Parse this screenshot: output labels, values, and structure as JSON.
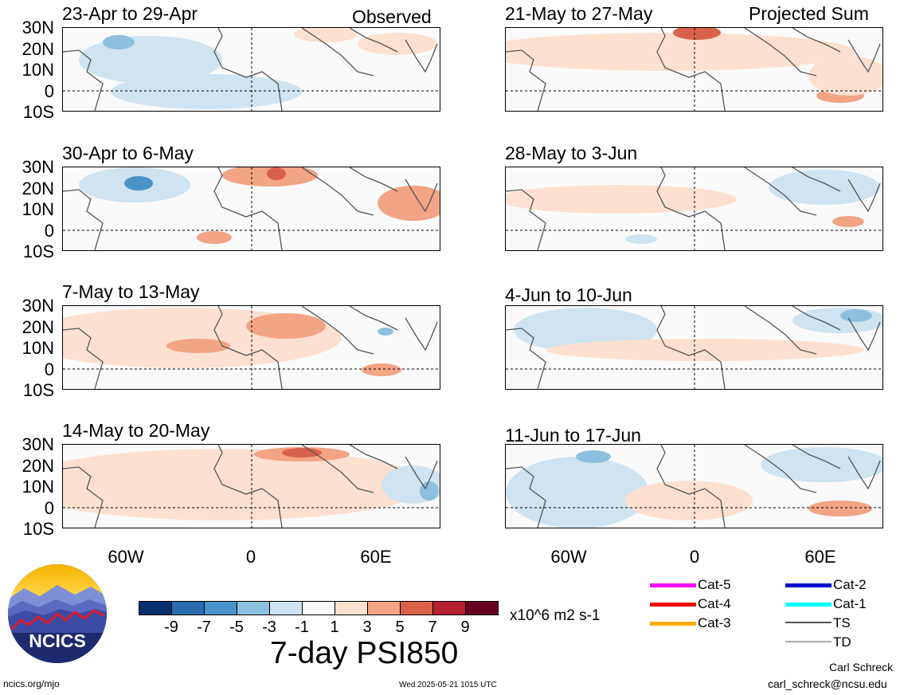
{
  "headers": {
    "left": "Observed",
    "right": "Projected Sum"
  },
  "panels_left": [
    {
      "title": "23-Apr to 29-Apr"
    },
    {
      "title": "30-Apr to 6-May"
    },
    {
      "title": "7-May to 13-May"
    },
    {
      "title": "14-May to 20-May"
    }
  ],
  "panels_right": [
    {
      "title": "21-May to 27-May"
    },
    {
      "title": "28-May to 3-Jun"
    },
    {
      "title": "4-Jun to 10-Jun"
    },
    {
      "title": "11-Jun to 17-Jun"
    }
  ],
  "lat_labels": [
    "30N",
    "20N",
    "10N",
    "0",
    "10S"
  ],
  "lon_labels": [
    "60W",
    "0",
    "60E"
  ],
  "colorbar": {
    "colors": [
      "#08306b",
      "#2b6cb0",
      "#4a93c9",
      "#8dc0de",
      "#cfe3f0",
      "#fafafa",
      "#fde0cf",
      "#f2a485",
      "#d9614a",
      "#b51f2e",
      "#67001f"
    ],
    "labels": [
      "-9",
      "-7",
      "-5",
      "-3",
      "-1",
      "1",
      "3",
      "5",
      "7",
      "9"
    ],
    "units": "x10^6 m2 s-1",
    "title": "7-day PSI850"
  },
  "storm_legend": [
    {
      "label": "Cat-5",
      "color": "#ff00ff"
    },
    {
      "label": "Cat-4",
      "color": "#ee0000"
    },
    {
      "label": "Cat-3",
      "color": "#ffaa00"
    },
    {
      "label": "Cat-2",
      "color": "#0000cc"
    },
    {
      "label": "Cat-1",
      "color": "#00ffff"
    },
    {
      "label": "TS",
      "color": "#555555"
    },
    {
      "label": "TD",
      "color": "#aaaaaa"
    }
  ],
  "logo_text": "NCICS",
  "footer": {
    "url": "ncics.org/mjo",
    "timestamp": "Wed 2025-05-21 1015 UTC",
    "author": "Carl Schreck",
    "email": "carl_schreck@ncsu.edu"
  }
}
